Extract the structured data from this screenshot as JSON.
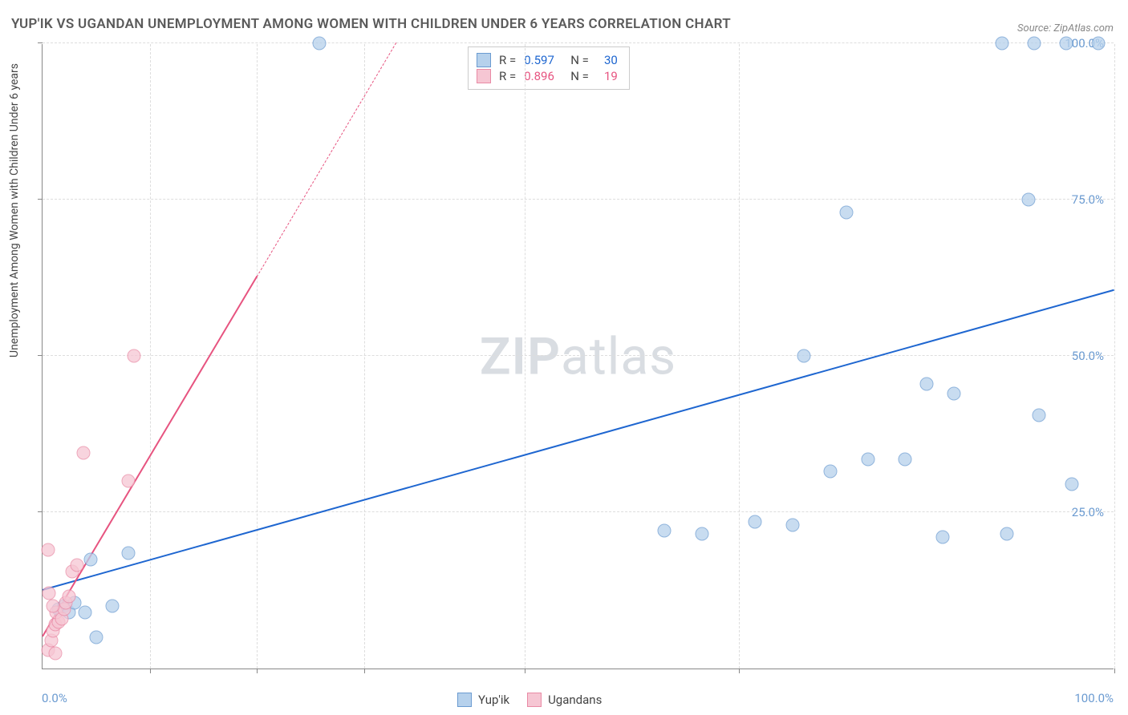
{
  "title": "YUP'IK VS UGANDAN UNEMPLOYMENT AMONG WOMEN WITH CHILDREN UNDER 6 YEARS CORRELATION CHART",
  "source": "Source: ZipAtlas.com",
  "y_axis_title": "Unemployment Among Women with Children Under 6 years",
  "watermark_a": "ZIP",
  "watermark_b": "atlas",
  "chart": {
    "type": "scatter",
    "xlim": [
      0,
      100
    ],
    "ylim": [
      0,
      100
    ],
    "x_ticks": [
      0,
      10,
      20,
      30,
      45,
      65,
      100
    ],
    "y_gridlines": [
      25,
      50,
      75,
      100
    ],
    "y_tick_labels": [
      "25.0%",
      "50.0%",
      "75.0%",
      "100.0%"
    ],
    "x_min_label": "0.0%",
    "x_max_label": "100.0%",
    "background_color": "#ffffff",
    "grid_color": "#dddddd",
    "axis_color": "#888888",
    "tick_label_color": "#6b9bd1",
    "marker_size": 17,
    "marker_opacity": 0.75,
    "series": [
      {
        "name": "Yup'ik",
        "color_fill": "#b6d1ec",
        "color_stroke": "#6b9bd1",
        "trend_color": "#1e66d0",
        "trend_width": 2.5,
        "trend": {
          "x1": 0,
          "y1": 12.5,
          "x2": 100,
          "y2": 60.5
        },
        "R": "0.597",
        "N": "30",
        "points": [
          [
            1.5,
            9.5
          ],
          [
            2.0,
            10.0
          ],
          [
            2.5,
            9.0
          ],
          [
            3.0,
            10.5
          ],
          [
            4.0,
            9.0
          ],
          [
            4.5,
            17.5
          ],
          [
            6.5,
            10.0
          ],
          [
            8.0,
            18.5
          ],
          [
            5.0,
            5.0
          ],
          [
            25.8,
            100.0
          ],
          [
            58.0,
            22.0
          ],
          [
            61.5,
            21.5
          ],
          [
            66.5,
            23.5
          ],
          [
            70.0,
            23.0
          ],
          [
            71.0,
            50.0
          ],
          [
            73.5,
            31.5
          ],
          [
            77.0,
            33.5
          ],
          [
            80.5,
            33.5
          ],
          [
            75.0,
            73.0
          ],
          [
            82.5,
            45.5
          ],
          [
            85.0,
            44.0
          ],
          [
            84.0,
            21.0
          ],
          [
            90.0,
            21.5
          ],
          [
            92.0,
            75.0
          ],
          [
            93.0,
            40.5
          ],
          [
            96.0,
            29.5
          ],
          [
            89.5,
            100.0
          ],
          [
            92.5,
            100.0
          ],
          [
            95.5,
            100.0
          ],
          [
            98.5,
            100.0
          ]
        ]
      },
      {
        "name": "Ugandans",
        "color_fill": "#f6c6d3",
        "color_stroke": "#e98aa5",
        "trend_color": "#e75480",
        "trend_width": 2.5,
        "trend": {
          "x1": 0,
          "y1": 5.0,
          "x2": 33,
          "y2": 100.0
        },
        "trend_solid_until_x": 20,
        "R": "0.896",
        "N": "19",
        "points": [
          [
            0.5,
            3.0
          ],
          [
            0.8,
            4.5
          ],
          [
            1.0,
            6.0
          ],
          [
            1.2,
            7.0
          ],
          [
            1.5,
            7.5
          ],
          [
            1.3,
            9.0
          ],
          [
            1.8,
            8.0
          ],
          [
            2.0,
            9.5
          ],
          [
            2.2,
            10.5
          ],
          [
            1.0,
            10.0
          ],
          [
            0.6,
            12.0
          ],
          [
            2.5,
            11.5
          ],
          [
            2.8,
            15.5
          ],
          [
            3.2,
            16.5
          ],
          [
            0.5,
            19.0
          ],
          [
            3.8,
            34.5
          ],
          [
            8.5,
            50.0
          ],
          [
            8.0,
            30.0
          ],
          [
            1.2,
            2.5
          ]
        ]
      }
    ]
  },
  "legend_stats": {
    "r_label": "R =",
    "n_label": "N ="
  },
  "legend_bottom": {
    "items": [
      "Yup'ik",
      "Ugandans"
    ]
  }
}
